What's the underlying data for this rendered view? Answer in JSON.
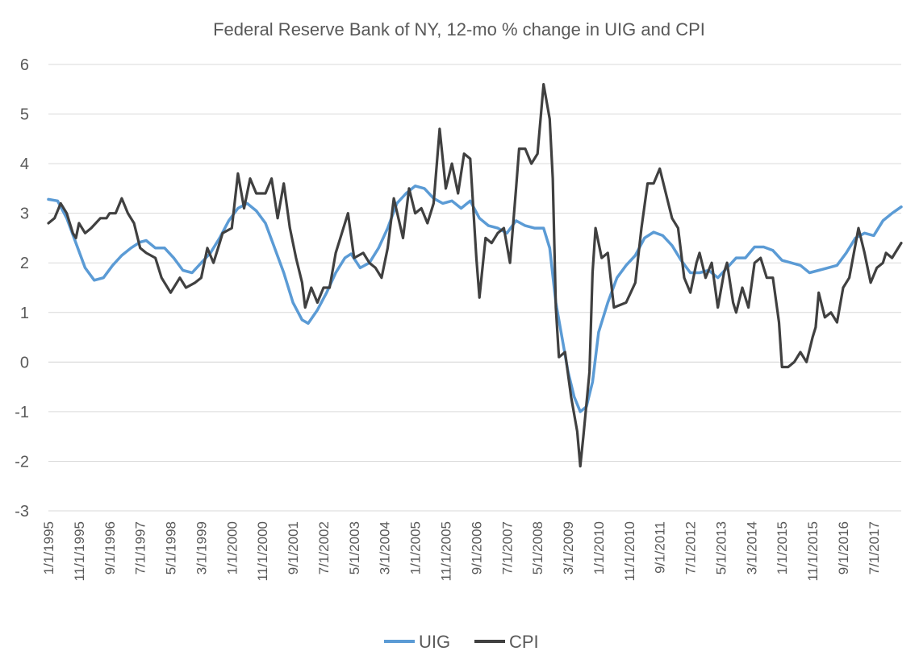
{
  "chart_data": {
    "type": "line",
    "title": "Federal Reserve Bank of NY, 12-mo % change in UIG and CPI",
    "xlabel": "",
    "ylabel": "",
    "ylim": [
      -3,
      6
    ],
    "yticks": [
      -3,
      -2,
      -1,
      0,
      1,
      2,
      3,
      4,
      5,
      6
    ],
    "grid": true,
    "legend_position": "bottom",
    "x_start": "1995-01",
    "x_end": "2018-04",
    "x_tick_labels": [
      "1/1/1995",
      "11/1/1995",
      "9/1/1996",
      "7/1/1997",
      "5/1/1998",
      "3/1/1999",
      "1/1/2000",
      "11/1/2000",
      "9/1/2001",
      "7/1/2002",
      "5/1/2003",
      "3/1/2004",
      "1/1/2005",
      "11/1/2005",
      "9/1/2006",
      "7/1/2007",
      "5/1/2008",
      "3/1/2009",
      "1/1/2010",
      "11/1/2010",
      "9/1/2011",
      "7/1/2012",
      "5/1/2013",
      "3/1/2014",
      "1/1/2015",
      "11/1/2015",
      "9/1/2016",
      "7/1/2017"
    ],
    "series": [
      {
        "name": "UIG",
        "color": "#5b9bd5",
        "points": [
          [
            "1995-01",
            3.28
          ],
          [
            "1995-04",
            3.25
          ],
          [
            "1995-07",
            2.9
          ],
          [
            "1995-10",
            2.4
          ],
          [
            "1996-01",
            1.9
          ],
          [
            "1996-04",
            1.65
          ],
          [
            "1996-07",
            1.7
          ],
          [
            "1996-10",
            1.95
          ],
          [
            "1997-01",
            2.15
          ],
          [
            "1997-04",
            2.3
          ],
          [
            "1997-07",
            2.42
          ],
          [
            "1997-09",
            2.45
          ],
          [
            "1997-12",
            2.3
          ],
          [
            "1998-03",
            2.3
          ],
          [
            "1998-06",
            2.1
          ],
          [
            "1998-09",
            1.85
          ],
          [
            "1998-12",
            1.8
          ],
          [
            "1999-03",
            2.0
          ],
          [
            "1999-06",
            2.2
          ],
          [
            "1999-09",
            2.5
          ],
          [
            "1999-12",
            2.85
          ],
          [
            "2000-03",
            3.1
          ],
          [
            "2000-06",
            3.2
          ],
          [
            "2000-09",
            3.05
          ],
          [
            "2000-12",
            2.8
          ],
          [
            "2001-03",
            2.3
          ],
          [
            "2001-06",
            1.8
          ],
          [
            "2001-09",
            1.2
          ],
          [
            "2001-12",
            0.85
          ],
          [
            "2002-02",
            0.78
          ],
          [
            "2002-05",
            1.05
          ],
          [
            "2002-08",
            1.4
          ],
          [
            "2002-11",
            1.8
          ],
          [
            "2003-02",
            2.1
          ],
          [
            "2003-04",
            2.18
          ],
          [
            "2003-07",
            1.9
          ],
          [
            "2003-10",
            2.0
          ],
          [
            "2004-01",
            2.3
          ],
          [
            "2004-04",
            2.7
          ],
          [
            "2004-07",
            3.2
          ],
          [
            "2004-10",
            3.4
          ],
          [
            "2005-01",
            3.55
          ],
          [
            "2005-04",
            3.5
          ],
          [
            "2005-07",
            3.3
          ],
          [
            "2005-10",
            3.2
          ],
          [
            "2006-01",
            3.25
          ],
          [
            "2006-04",
            3.1
          ],
          [
            "2006-07",
            3.25
          ],
          [
            "2006-10",
            2.9
          ],
          [
            "2007-01",
            2.75
          ],
          [
            "2007-04",
            2.7
          ],
          [
            "2007-07",
            2.6
          ],
          [
            "2007-10",
            2.85
          ],
          [
            "2008-01",
            2.75
          ],
          [
            "2008-04",
            2.7
          ],
          [
            "2008-07",
            2.7
          ],
          [
            "2008-09",
            2.3
          ],
          [
            "2008-11",
            1.2
          ],
          [
            "2009-01",
            0.5
          ],
          [
            "2009-03",
            -0.2
          ],
          [
            "2009-05",
            -0.7
          ],
          [
            "2009-07",
            -1.0
          ],
          [
            "2009-09",
            -0.9
          ],
          [
            "2009-11",
            -0.4
          ],
          [
            "2010-01",
            0.6
          ],
          [
            "2010-04",
            1.2
          ],
          [
            "2010-07",
            1.7
          ],
          [
            "2010-10",
            1.95
          ],
          [
            "2011-01",
            2.15
          ],
          [
            "2011-04",
            2.5
          ],
          [
            "2011-07",
            2.62
          ],
          [
            "2011-10",
            2.55
          ],
          [
            "2012-01",
            2.35
          ],
          [
            "2012-04",
            2.05
          ],
          [
            "2012-07",
            1.8
          ],
          [
            "2012-10",
            1.8
          ],
          [
            "2013-01",
            1.85
          ],
          [
            "2013-04",
            1.7
          ],
          [
            "2013-07",
            1.9
          ],
          [
            "2013-10",
            2.1
          ],
          [
            "2014-01",
            2.1
          ],
          [
            "2014-04",
            2.32
          ],
          [
            "2014-07",
            2.32
          ],
          [
            "2014-10",
            2.25
          ],
          [
            "2015-01",
            2.05
          ],
          [
            "2015-04",
            2.0
          ],
          [
            "2015-07",
            1.95
          ],
          [
            "2015-10",
            1.8
          ],
          [
            "2016-01",
            1.85
          ],
          [
            "2016-04",
            1.9
          ],
          [
            "2016-07",
            1.95
          ],
          [
            "2016-10",
            2.2
          ],
          [
            "2017-01",
            2.5
          ],
          [
            "2017-04",
            2.6
          ],
          [
            "2017-07",
            2.55
          ],
          [
            "2017-10",
            2.85
          ],
          [
            "2018-01",
            3.0
          ],
          [
            "2018-04",
            3.13
          ]
        ]
      },
      {
        "name": "CPI",
        "color": "#404040",
        "points": [
          [
            "1995-01",
            2.8
          ],
          [
            "1995-03",
            2.9
          ],
          [
            "1995-05",
            3.2
          ],
          [
            "1995-07",
            3.0
          ],
          [
            "1995-09",
            2.6
          ],
          [
            "1995-10",
            2.5
          ],
          [
            "1995-11",
            2.8
          ],
          [
            "1996-01",
            2.6
          ],
          [
            "1996-03",
            2.7
          ],
          [
            "1996-06",
            2.9
          ],
          [
            "1996-08",
            2.9
          ],
          [
            "1996-09",
            3.0
          ],
          [
            "1996-11",
            3.0
          ],
          [
            "1997-01",
            3.3
          ],
          [
            "1997-03",
            3.0
          ],
          [
            "1997-05",
            2.8
          ],
          [
            "1997-07",
            2.3
          ],
          [
            "1997-09",
            2.2
          ],
          [
            "1997-12",
            2.1
          ],
          [
            "1998-02",
            1.7
          ],
          [
            "1998-05",
            1.4
          ],
          [
            "1998-08",
            1.7
          ],
          [
            "1998-10",
            1.5
          ],
          [
            "1999-01",
            1.6
          ],
          [
            "1999-03",
            1.7
          ],
          [
            "1999-05",
            2.3
          ],
          [
            "1999-07",
            2.0
          ],
          [
            "1999-09",
            2.4
          ],
          [
            "1999-10",
            2.6
          ],
          [
            "2000-01",
            2.7
          ],
          [
            "2000-03",
            3.8
          ],
          [
            "2000-05",
            3.1
          ],
          [
            "2000-07",
            3.7
          ],
          [
            "2000-09",
            3.4
          ],
          [
            "2000-12",
            3.4
          ],
          [
            "2001-02",
            3.7
          ],
          [
            "2001-04",
            2.9
          ],
          [
            "2001-06",
            3.6
          ],
          [
            "2001-08",
            2.7
          ],
          [
            "2001-10",
            2.1
          ],
          [
            "2001-12",
            1.6
          ],
          [
            "2002-01",
            1.1
          ],
          [
            "2002-03",
            1.5
          ],
          [
            "2002-05",
            1.2
          ],
          [
            "2002-07",
            1.5
          ],
          [
            "2002-09",
            1.5
          ],
          [
            "2002-11",
            2.2
          ],
          [
            "2003-01",
            2.6
          ],
          [
            "2003-03",
            3.0
          ],
          [
            "2003-05",
            2.1
          ],
          [
            "2003-08",
            2.2
          ],
          [
            "2003-10",
            2.0
          ],
          [
            "2003-12",
            1.9
          ],
          [
            "2004-02",
            1.7
          ],
          [
            "2004-04",
            2.3
          ],
          [
            "2004-06",
            3.3
          ],
          [
            "2004-09",
            2.5
          ],
          [
            "2004-11",
            3.5
          ],
          [
            "2005-01",
            3.0
          ],
          [
            "2005-03",
            3.1
          ],
          [
            "2005-05",
            2.8
          ],
          [
            "2005-07",
            3.2
          ],
          [
            "2005-09",
            4.7
          ],
          [
            "2005-11",
            3.5
          ],
          [
            "2006-01",
            4.0
          ],
          [
            "2006-03",
            3.4
          ],
          [
            "2006-05",
            4.2
          ],
          [
            "2006-07",
            4.1
          ],
          [
            "2006-09",
            2.1
          ],
          [
            "2006-10",
            1.3
          ],
          [
            "2006-12",
            2.5
          ],
          [
            "2007-02",
            2.4
          ],
          [
            "2007-04",
            2.6
          ],
          [
            "2007-06",
            2.7
          ],
          [
            "2007-08",
            2.0
          ],
          [
            "2007-10",
            3.5
          ],
          [
            "2007-11",
            4.3
          ],
          [
            "2008-01",
            4.3
          ],
          [
            "2008-03",
            4.0
          ],
          [
            "2008-05",
            4.2
          ],
          [
            "2008-07",
            5.6
          ],
          [
            "2008-09",
            4.9
          ],
          [
            "2008-10",
            3.7
          ],
          [
            "2008-11",
            1.1
          ],
          [
            "2008-12",
            0.1
          ],
          [
            "2009-02",
            0.2
          ],
          [
            "2009-04",
            -0.7
          ],
          [
            "2009-06",
            -1.4
          ],
          [
            "2009-07",
            -2.1
          ],
          [
            "2009-08",
            -1.5
          ],
          [
            "2009-10",
            -0.2
          ],
          [
            "2009-11",
            1.8
          ],
          [
            "2009-12",
            2.7
          ],
          [
            "2010-02",
            2.1
          ],
          [
            "2010-04",
            2.2
          ],
          [
            "2010-06",
            1.1
          ],
          [
            "2010-08",
            1.15
          ],
          [
            "2010-10",
            1.2
          ],
          [
            "2011-01",
            1.6
          ],
          [
            "2011-03",
            2.7
          ],
          [
            "2011-05",
            3.6
          ],
          [
            "2011-07",
            3.6
          ],
          [
            "2011-09",
            3.9
          ],
          [
            "2011-11",
            3.4
          ],
          [
            "2012-01",
            2.9
          ],
          [
            "2012-03",
            2.7
          ],
          [
            "2012-05",
            1.7
          ],
          [
            "2012-07",
            1.4
          ],
          [
            "2012-09",
            2.0
          ],
          [
            "2012-10",
            2.2
          ],
          [
            "2012-12",
            1.7
          ],
          [
            "2013-02",
            2.0
          ],
          [
            "2013-04",
            1.1
          ],
          [
            "2013-06",
            1.8
          ],
          [
            "2013-07",
            2.0
          ],
          [
            "2013-09",
            1.2
          ],
          [
            "2013-10",
            1.0
          ],
          [
            "2013-12",
            1.5
          ],
          [
            "2014-02",
            1.1
          ],
          [
            "2014-04",
            2.0
          ],
          [
            "2014-06",
            2.1
          ],
          [
            "2014-08",
            1.7
          ],
          [
            "2014-10",
            1.7
          ],
          [
            "2014-12",
            0.8
          ],
          [
            "2015-01",
            -0.1
          ],
          [
            "2015-03",
            -0.1
          ],
          [
            "2015-05",
            0.0
          ],
          [
            "2015-07",
            0.2
          ],
          [
            "2015-09",
            0.0
          ],
          [
            "2015-11",
            0.5
          ],
          [
            "2015-12",
            0.7
          ],
          [
            "2016-01",
            1.4
          ],
          [
            "2016-03",
            0.9
          ],
          [
            "2016-05",
            1.0
          ],
          [
            "2016-07",
            0.8
          ],
          [
            "2016-09",
            1.5
          ],
          [
            "2016-11",
            1.7
          ],
          [
            "2017-02",
            2.7
          ],
          [
            "2017-04",
            2.2
          ],
          [
            "2017-06",
            1.6
          ],
          [
            "2017-08",
            1.9
          ],
          [
            "2017-10",
            2.0
          ],
          [
            "2017-11",
            2.2
          ],
          [
            "2018-01",
            2.1
          ],
          [
            "2018-04",
            2.4
          ]
        ]
      }
    ]
  }
}
